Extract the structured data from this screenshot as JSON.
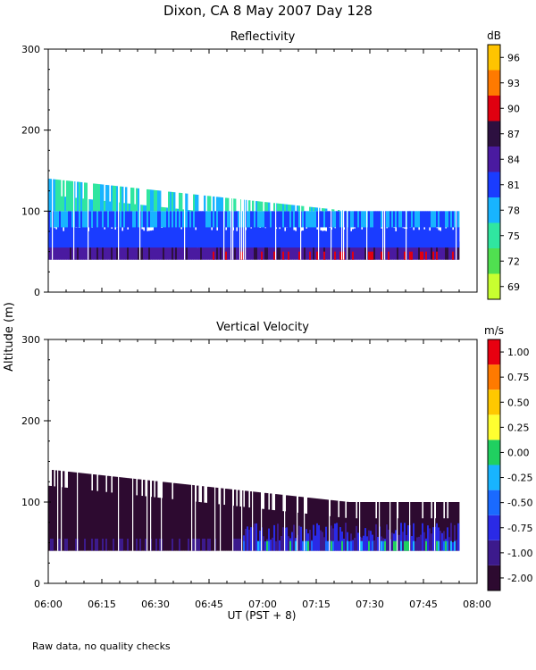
{
  "title": "Dixon, CA  8 May 2007  Day 128",
  "ylabel": "Altitude (m)",
  "xlabel": "UT  (PST + 8)",
  "footnote": "Raw data, no quality checks",
  "x_ticks": [
    "06:00",
    "06:15",
    "06:30",
    "06:45",
    "07:00",
    "07:15",
    "07:30",
    "07:45",
    "08:00"
  ],
  "y_ticks": [
    "0",
    "100",
    "200",
    "300"
  ],
  "chart_data": [
    {
      "type": "heatmap",
      "title": "Reflectivity",
      "x_range": [
        "06:00",
        "08:00"
      ],
      "ylim": [
        0,
        300
      ],
      "colorbar_unit": "dB",
      "colorbar_ticks": [
        "69",
        "72",
        "75",
        "78",
        "81",
        "84",
        "87",
        "90",
        "93",
        "96"
      ],
      "colors": [
        "#c8ff30",
        "#50e050",
        "#30e6a0",
        "#18b4ff",
        "#1a3cff",
        "#4a1aa0",
        "#2d1040",
        "#e00010",
        "#ff7a00",
        "#ffc400"
      ],
      "bands": [
        {
          "from_m": 40,
          "to_m": 55,
          "value_db": 87
        },
        {
          "from_m": 55,
          "to_m": 80,
          "value_db": 81
        },
        {
          "from_m": 80,
          "to_m": 100,
          "value_db": 78
        },
        {
          "from_m": 100,
          "to_m": 140,
          "value_db": 75
        }
      ],
      "signal_top_m_start": 140,
      "signal_top_m_end": 100
    },
    {
      "type": "heatmap",
      "title": "Vertical Velocity",
      "x_range": [
        "06:00",
        "08:00"
      ],
      "ylim": [
        0,
        300
      ],
      "colorbar_unit": "m/s",
      "colorbar_ticks": [
        "-2.00",
        "-1.00",
        "-0.75",
        "-0.50",
        "-0.25",
        "0.00",
        "0.25",
        "0.50",
        "0.75",
        "1.00"
      ],
      "colors": [
        "#2d0a30",
        "#3c1a8c",
        "#2a2ae6",
        "#1a6aff",
        "#18b4ff",
        "#20d060",
        "#ffff30",
        "#ffc800",
        "#ff7a00",
        "#e80010"
      ],
      "bands": [
        {
          "from_m": 40,
          "to_m": 140,
          "value_ms": -2.0
        }
      ],
      "signal_top_m_start": 140,
      "signal_top_m_end": 100
    }
  ]
}
